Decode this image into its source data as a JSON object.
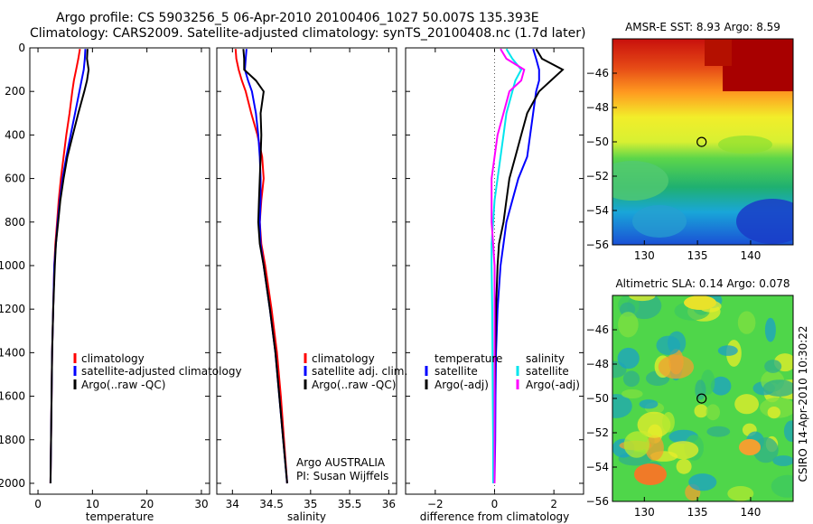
{
  "header": {
    "line1": "Argo profile: CS 5903256_5 06-Apr-2010 20100406_1027 50.007S 135.393E",
    "line2": "Climatology: CARS2009. Satellite-adjusted climatology: synTS_20100408.nc (1.7d later)"
  },
  "side_stamp": "CSIRO 14-Apr-2010 10:30:22",
  "colors": {
    "climatology": "#ff0000",
    "satellite": "#0000ff",
    "argo": "#000000",
    "salinity_satellite": "#00e5ee",
    "salinity_argo": "#ff00ff",
    "zero_line": "#555555"
  },
  "chart_data": [
    {
      "id": "temperature",
      "type": "line",
      "xlabel": "temperature",
      "ylabel": "",
      "xlim": [
        -1.5,
        31.5
      ],
      "ylim": [
        2050,
        0
      ],
      "xticks": [
        0,
        10,
        20,
        30
      ],
      "yticks": [
        0,
        200,
        400,
        600,
        800,
        1000,
        1200,
        1400,
        1600,
        1800,
        2000
      ],
      "y_reversed": true,
      "depth": [
        5,
        50,
        100,
        150,
        200,
        300,
        400,
        500,
        600,
        700,
        800,
        900,
        1000,
        1200,
        1400,
        1600,
        1800,
        2000
      ],
      "legend": [
        "climatology",
        "satellite-adjusted climatology",
        "Argo(..raw -QC)"
      ],
      "series": [
        {
          "name": "climatology",
          "color_key": "climatology",
          "values": [
            7.7,
            7.4,
            7.0,
            6.6,
            6.3,
            5.8,
            5.2,
            4.7,
            4.2,
            3.8,
            3.5,
            3.2,
            3.0,
            2.8,
            2.6,
            2.5,
            2.4,
            2.3
          ]
        },
        {
          "name": "satellite-adjusted climatology",
          "color_key": "satellite",
          "values": [
            8.7,
            8.6,
            8.4,
            8.0,
            7.6,
            6.8,
            6.0,
            5.2,
            4.5,
            4.0,
            3.6,
            3.3,
            3.0,
            2.8,
            2.6,
            2.5,
            2.4,
            2.3
          ]
        },
        {
          "name": "Argo(..raw -QC)",
          "color_key": "argo",
          "values": [
            9.1,
            9.0,
            9.3,
            9.0,
            8.5,
            7.4,
            6.4,
            5.4,
            4.7,
            4.1,
            3.7,
            3.3,
            3.1,
            2.8,
            2.6,
            2.5,
            2.4,
            2.3
          ]
        }
      ]
    },
    {
      "id": "salinity",
      "type": "line",
      "xlabel": "salinity",
      "ylabel": "",
      "xlim": [
        33.8,
        36.1
      ],
      "ylim": [
        2050,
        0
      ],
      "xticks": [
        34,
        34.5,
        35,
        35.5,
        36
      ],
      "y_reversed": true,
      "depth": [
        5,
        50,
        100,
        150,
        200,
        300,
        400,
        500,
        600,
        700,
        800,
        900,
        1000,
        1200,
        1400,
        1600,
        1800,
        2000
      ],
      "legend": [
        "climatology",
        "satellite adj. clim.",
        "Argo(..raw -QC)"
      ],
      "annotations": [
        "Argo AUSTRALIA",
        "PI: Susan Wijffels"
      ],
      "series": [
        {
          "name": "climatology",
          "color_key": "climatology",
          "values": [
            34.04,
            34.05,
            34.08,
            34.12,
            34.17,
            34.24,
            34.32,
            34.38,
            34.4,
            34.37,
            34.35,
            34.37,
            34.42,
            34.5,
            34.57,
            34.62,
            34.66,
            34.7
          ]
        },
        {
          "name": "satellite adj. clim.",
          "color_key": "satellite",
          "values": [
            34.18,
            34.17,
            34.16,
            34.2,
            34.25,
            34.3,
            34.33,
            34.35,
            34.36,
            34.36,
            34.35,
            34.36,
            34.4,
            34.48,
            34.55,
            34.6,
            34.65,
            34.7
          ]
        },
        {
          "name": "Argo(..raw -QC)",
          "color_key": "argo",
          "values": [
            34.14,
            34.15,
            34.15,
            34.3,
            34.4,
            34.36,
            34.37,
            34.36,
            34.35,
            34.34,
            34.33,
            34.35,
            34.4,
            34.48,
            34.55,
            34.6,
            34.65,
            34.7
          ]
        }
      ]
    },
    {
      "id": "difference",
      "type": "line",
      "xlabel": "difference from climatology",
      "ylabel": "",
      "xlim": [
        -3,
        3
      ],
      "ylim": [
        2050,
        0
      ],
      "xticks": [
        -2,
        0,
        2
      ],
      "y_reversed": true,
      "depth": [
        5,
        50,
        100,
        150,
        200,
        300,
        400,
        500,
        600,
        700,
        800,
        900,
        1000,
        1200,
        1400,
        1600,
        1800,
        2000
      ],
      "legend_titles": [
        "temperature",
        "salinity"
      ],
      "legend": [
        "satellite",
        "Argo(-adj)",
        "satellite",
        "Argo(-adj)"
      ],
      "series": [
        {
          "name": "temperature satellite",
          "color_key": "satellite",
          "values": [
            1.3,
            1.4,
            1.5,
            1.5,
            1.4,
            1.3,
            1.2,
            1.1,
            0.8,
            0.6,
            0.4,
            0.3,
            0.2,
            0.1,
            0.05,
            0.03,
            0.02,
            0.0
          ]
        },
        {
          "name": "temperature Argo(-adj)",
          "color_key": "argo",
          "values": [
            1.4,
            1.6,
            2.3,
            1.9,
            1.5,
            1.1,
            0.9,
            0.7,
            0.5,
            0.4,
            0.3,
            0.15,
            0.1,
            0.05,
            0.02,
            0.0,
            0.0,
            0.0
          ]
        },
        {
          "name": "salinity satellite",
          "color_key": "salinity_satellite",
          "values": [
            0.4,
            0.6,
            0.9,
            0.7,
            0.6,
            0.4,
            0.3,
            0.2,
            0.1,
            0.0,
            -0.05,
            -0.1,
            -0.1,
            -0.08,
            -0.07,
            -0.06,
            -0.05,
            -0.05
          ]
        },
        {
          "name": "salinity Argo(-adj)",
          "color_key": "salinity_argo",
          "values": [
            0.2,
            0.4,
            1.0,
            0.9,
            0.5,
            0.3,
            0.1,
            0.0,
            -0.1,
            -0.1,
            -0.1,
            -0.05,
            0.0,
            0.0,
            0.0,
            0.0,
            0.0,
            0.0
          ]
        }
      ]
    },
    {
      "id": "sst_map",
      "type": "heatmap",
      "title": "AMSR-E SST: 8.93 Argo: 8.59",
      "xlim": [
        127,
        144
      ],
      "ylim": [
        -56,
        -44
      ],
      "xticks": [
        130,
        135,
        140
      ],
      "yticks": [
        -46,
        -48,
        -50,
        -52,
        -54,
        -56
      ],
      "marker": {
        "lon": 135.393,
        "lat": -50.007
      }
    },
    {
      "id": "sla_map",
      "type": "heatmap",
      "title": "Altimetric SLA: 0.14 Argo: 0.078",
      "xlim": [
        127,
        144
      ],
      "ylim": [
        -56,
        -44
      ],
      "xticks": [
        130,
        135,
        140
      ],
      "yticks": [
        -46,
        -48,
        -50,
        -52,
        -54,
        -56
      ],
      "marker": {
        "lon": 135.393,
        "lat": -50.007
      }
    }
  ]
}
